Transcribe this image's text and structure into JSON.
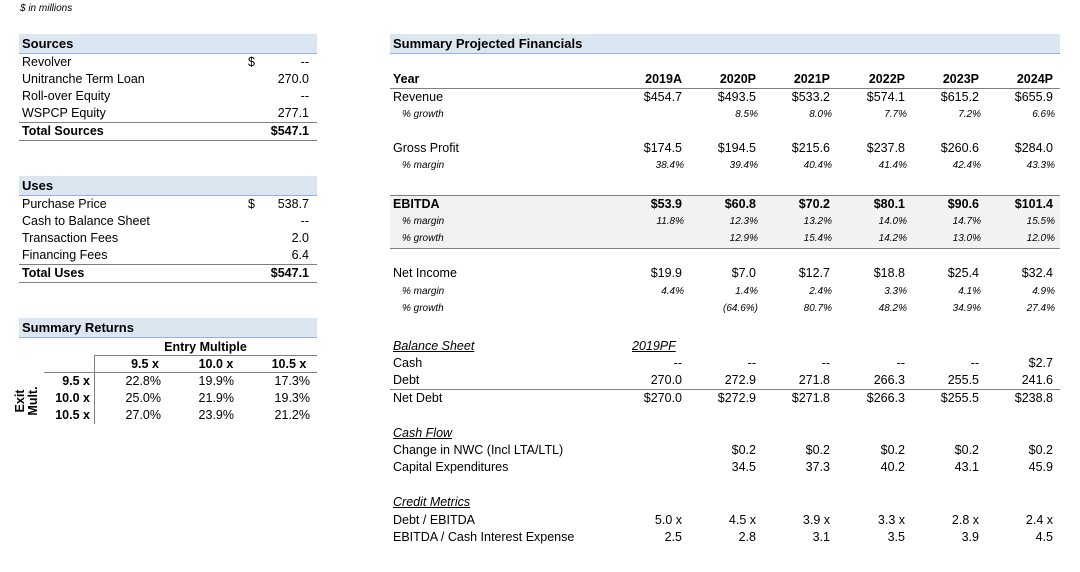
{
  "units_note": "$ in millions",
  "sources": {
    "title": "Sources",
    "rows": [
      {
        "label": "Revolver",
        "cur": "$",
        "value": "--"
      },
      {
        "label": "Unitranche Term Loan",
        "cur": "",
        "value": "270.0"
      },
      {
        "label": "Roll-over Equity",
        "cur": "",
        "value": "--"
      },
      {
        "label": "WSPCP Equity",
        "cur": "",
        "value": "277.1"
      }
    ],
    "total": {
      "label": "Total Sources",
      "value": "$547.1"
    }
  },
  "uses": {
    "title": "Uses",
    "rows": [
      {
        "label": "Purchase Price",
        "cur": "$",
        "value": "538.7"
      },
      {
        "label": "Cash to Balance Sheet",
        "cur": "",
        "value": "--"
      },
      {
        "label": "Transaction Fees",
        "cur": "",
        "value": "2.0"
      },
      {
        "label": "Financing Fees",
        "cur": "",
        "value": "6.4"
      }
    ],
    "total": {
      "label": "Total Uses",
      "value": "$547.1"
    }
  },
  "returns": {
    "title": "Summary Returns",
    "entry_label": "Entry Multiple",
    "exit_label_1": "Exit",
    "exit_label_2": "Mult.",
    "entry_cols": [
      "9.5 x",
      "10.0 x",
      "10.5 x"
    ],
    "rows": [
      {
        "exit": "9.5 x",
        "values": [
          "22.8%",
          "19.9%",
          "17.3%"
        ]
      },
      {
        "exit": "10.0 x",
        "values": [
          "25.0%",
          "21.9%",
          "19.3%"
        ]
      },
      {
        "exit": "10.5 x",
        "values": [
          "27.0%",
          "23.9%",
          "21.2%"
        ]
      }
    ]
  },
  "financials": {
    "title": "Summary Projected Financials",
    "year_label": "Year",
    "years": [
      "2019A",
      "2020P",
      "2021P",
      "2022P",
      "2023P",
      "2024P"
    ],
    "revenue": {
      "label": "Revenue",
      "values": [
        "$454.7",
        "$493.5",
        "$533.2",
        "$574.1",
        "$615.2",
        "$655.9"
      ]
    },
    "revenue_growth": {
      "label": "% growth",
      "values": [
        "",
        "8.5%",
        "8.0%",
        "7.7%",
        "7.2%",
        "6.6%"
      ]
    },
    "gross_profit": {
      "label": "Gross Profit",
      "values": [
        "$174.5",
        "$194.5",
        "$215.6",
        "$237.8",
        "$260.6",
        "$284.0"
      ]
    },
    "gp_margin": {
      "label": "% margin",
      "values": [
        "38.4%",
        "39.4%",
        "40.4%",
        "41.4%",
        "42.4%",
        "43.3%"
      ]
    },
    "ebitda": {
      "label": "EBITDA",
      "values": [
        "$53.9",
        "$60.8",
        "$70.2",
        "$80.1",
        "$90.6",
        "$101.4"
      ]
    },
    "ebitda_margin": {
      "label": "% margin",
      "values": [
        "11.8%",
        "12.3%",
        "13.2%",
        "14.0%",
        "14.7%",
        "15.5%"
      ]
    },
    "ebitda_growth": {
      "label": "% growth",
      "values": [
        "",
        "12.9%",
        "15.4%",
        "14.2%",
        "13.0%",
        "12.0%"
      ]
    },
    "net_income": {
      "label": "Net Income",
      "values": [
        "$19.9",
        "$7.0",
        "$12.7",
        "$18.8",
        "$25.4",
        "$32.4"
      ]
    },
    "ni_margin": {
      "label": "% margin",
      "values": [
        "4.4%",
        "1.4%",
        "2.4%",
        "3.3%",
        "4.1%",
        "4.9%"
      ]
    },
    "ni_growth": {
      "label": "% growth",
      "values": [
        "",
        "(64.6%)",
        "80.7%",
        "48.2%",
        "34.9%",
        "27.4%"
      ]
    },
    "balance_sheet": {
      "label": "Balance Sheet",
      "col_label": "2019PF",
      "rows": [
        {
          "label": "Cash",
          "values": [
            "--",
            "--",
            "--",
            "--",
            "--",
            "$2.7"
          ]
        },
        {
          "label": "Debt",
          "values": [
            "270.0",
            "272.9",
            "271.8",
            "266.3",
            "255.5",
            "241.6"
          ]
        },
        {
          "label": "Net Debt",
          "values": [
            "$270.0",
            "$272.9",
            "$271.8",
            "$266.3",
            "$255.5",
            "$238.8"
          ]
        }
      ]
    },
    "cash_flow": {
      "label": "Cash Flow",
      "rows": [
        {
          "label": "Change in NWC (Incl LTA/LTL)",
          "values": [
            "",
            "$0.2",
            "$0.2",
            "$0.2",
            "$0.2",
            "$0.2"
          ]
        },
        {
          "label": "Capital Expenditures",
          "values": [
            "",
            "34.5",
            "37.3",
            "40.2",
            "43.1",
            "45.9"
          ]
        }
      ]
    },
    "credit_metrics": {
      "label": "Credit Metrics",
      "rows": [
        {
          "label": "Debt / EBITDA",
          "values": [
            "5.0 x",
            "4.5 x",
            "3.9 x",
            "3.3 x",
            "2.8 x",
            "2.4 x"
          ]
        },
        {
          "label": "EBITDA / Cash Interest Expense",
          "values": [
            "2.5",
            "2.8",
            "3.1",
            "3.5",
            "3.9",
            "4.5"
          ]
        }
      ]
    }
  }
}
